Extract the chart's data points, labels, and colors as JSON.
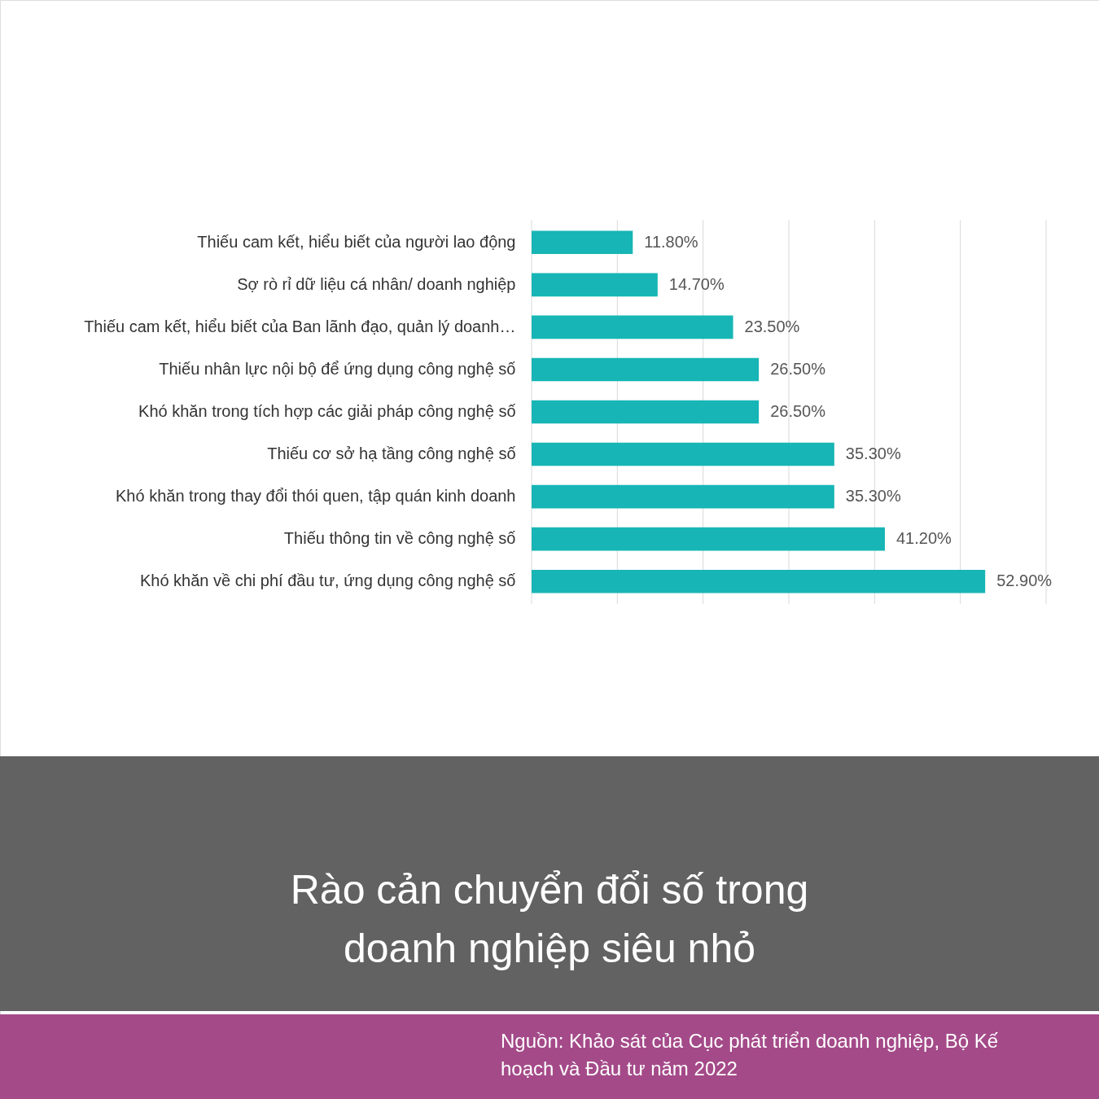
{
  "chart_data": {
    "type": "bar",
    "orientation": "horizontal",
    "title": "Rào cản chuyển đổi số trong doanh nghiệp siêu nhỏ",
    "categories": [
      "Thiếu cam kết, hiểu biết của người lao động",
      "Sợ rò rỉ dữ liệu cá nhân/ doanh nghiệp",
      "Thiếu cam kết, hiểu biết của Ban lãnh đạo, quản lý doanh…",
      "Thiếu nhân lực nội bộ để ứng dụng công nghệ số",
      "Khó khăn trong tích hợp các giải pháp công nghệ số",
      "Thiếu cơ sở hạ tầng công nghệ số",
      "Khó khăn trong thay đổi thói quen, tập quán kinh doanh",
      "Thiếu thông tin về công nghệ số",
      "Khó khăn về chi phí đầu tư, ứng dụng công nghệ số"
    ],
    "values": [
      11.8,
      14.7,
      23.5,
      26.5,
      26.5,
      35.3,
      35.3,
      41.2,
      52.9
    ],
    "value_labels": [
      "11.80%",
      "14.70%",
      "23.50%",
      "26.50%",
      "26.50%",
      "35.30%",
      "35.30%",
      "41.20%",
      "52.90%"
    ],
    "color": "#17b5b5",
    "xlim": [
      0,
      60
    ],
    "xticks": [
      {
        "value": 0,
        "label": null
      },
      {
        "value": 10,
        "label": null
      },
      {
        "value": 20,
        "label": null
      },
      {
        "value": 30,
        "label": null
      },
      {
        "value": 40,
        "label": null
      },
      {
        "value": 50,
        "label": null
      },
      {
        "value": 60,
        "label": null
      }
    ],
    "grid": "x",
    "tick_labels": "y",
    "annotations": [
      "Nguồn: Khảo sát của Cục phát triển doanh nghiệp, Bộ Kế hoạch và Đầu tư năm 2022"
    ]
  }
}
